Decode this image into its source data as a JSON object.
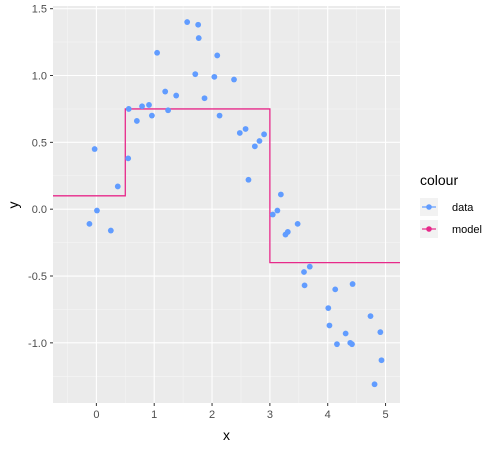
{
  "chart_data": {
    "type": "scatter",
    "xlabel": "x",
    "ylabel": "y",
    "xlim": [
      -0.75,
      5.25
    ],
    "ylim": [
      -1.45,
      1.52
    ],
    "x_ticks": [
      0,
      1,
      2,
      3,
      4,
      5
    ],
    "x_tick_labels": [
      "0",
      "1",
      "2",
      "3",
      "4",
      "5"
    ],
    "y_ticks": [
      -1.0,
      -0.5,
      0.0,
      0.5,
      1.0,
      1.5
    ],
    "y_tick_labels": [
      "-1.0",
      "-0.5",
      "0.0",
      "0.5",
      "1.0",
      "1.5"
    ],
    "grid": true,
    "panel_background": "#ebebeb",
    "legend": {
      "title": "colour",
      "position": "right",
      "entries": [
        {
          "label": "data",
          "color": "#619cff"
        },
        {
          "label": "model",
          "color": "#e7298a"
        }
      ]
    },
    "series": [
      {
        "name": "data",
        "type": "scatter",
        "color": "#619cff",
        "points": [
          {
            "x": -0.12,
            "y": -0.11
          },
          {
            "x": -0.03,
            "y": 0.45
          },
          {
            "x": 0.01,
            "y": -0.01
          },
          {
            "x": 0.25,
            "y": -0.16
          },
          {
            "x": 0.37,
            "y": 0.17
          },
          {
            "x": 0.55,
            "y": 0.38
          },
          {
            "x": 0.56,
            "y": 0.75
          },
          {
            "x": 0.7,
            "y": 0.66
          },
          {
            "x": 0.79,
            "y": 0.77
          },
          {
            "x": 0.91,
            "y": 0.78
          },
          {
            "x": 0.96,
            "y": 0.7
          },
          {
            "x": 1.05,
            "y": 1.17
          },
          {
            "x": 1.19,
            "y": 0.88
          },
          {
            "x": 1.24,
            "y": 0.74
          },
          {
            "x": 1.38,
            "y": 0.85
          },
          {
            "x": 1.57,
            "y": 1.4
          },
          {
            "x": 1.71,
            "y": 1.01
          },
          {
            "x": 1.76,
            "y": 1.38
          },
          {
            "x": 1.77,
            "y": 1.28
          },
          {
            "x": 1.87,
            "y": 0.83
          },
          {
            "x": 2.04,
            "y": 0.99
          },
          {
            "x": 2.09,
            "y": 1.15
          },
          {
            "x": 2.13,
            "y": 0.7
          },
          {
            "x": 2.38,
            "y": 0.97
          },
          {
            "x": 2.48,
            "y": 0.57
          },
          {
            "x": 2.58,
            "y": 0.6
          },
          {
            "x": 2.63,
            "y": 0.22
          },
          {
            "x": 2.74,
            "y": 0.47
          },
          {
            "x": 2.82,
            "y": 0.51
          },
          {
            "x": 2.9,
            "y": 0.56
          },
          {
            "x": 3.05,
            "y": -0.04
          },
          {
            "x": 3.13,
            "y": -0.01
          },
          {
            "x": 3.19,
            "y": 0.11
          },
          {
            "x": 3.27,
            "y": -0.19
          },
          {
            "x": 3.31,
            "y": -0.17
          },
          {
            "x": 3.48,
            "y": -0.11
          },
          {
            "x": 3.59,
            "y": -0.47
          },
          {
            "x": 3.6,
            "y": -0.57
          },
          {
            "x": 3.69,
            "y": -0.43
          },
          {
            "x": 4.01,
            "y": -0.74
          },
          {
            "x": 4.03,
            "y": -0.87
          },
          {
            "x": 4.13,
            "y": -0.6
          },
          {
            "x": 4.16,
            "y": -1.01
          },
          {
            "x": 4.31,
            "y": -0.93
          },
          {
            "x": 4.39,
            "y": -1.0
          },
          {
            "x": 4.42,
            "y": -1.01
          },
          {
            "x": 4.43,
            "y": -0.56
          },
          {
            "x": 4.74,
            "y": -0.8
          },
          {
            "x": 4.81,
            "y": -1.31
          },
          {
            "x": 4.91,
            "y": -0.92
          },
          {
            "x": 4.93,
            "y": -1.13
          }
        ]
      },
      {
        "name": "model",
        "type": "step",
        "color": "#e7298a",
        "steps": [
          {
            "x0": -0.75,
            "x1": 0.5,
            "y": 0.1
          },
          {
            "x0": 0.5,
            "x1": 3.0,
            "y": 0.75
          },
          {
            "x0": 3.0,
            "x1": 5.25,
            "y": -0.4
          }
        ]
      }
    ]
  }
}
